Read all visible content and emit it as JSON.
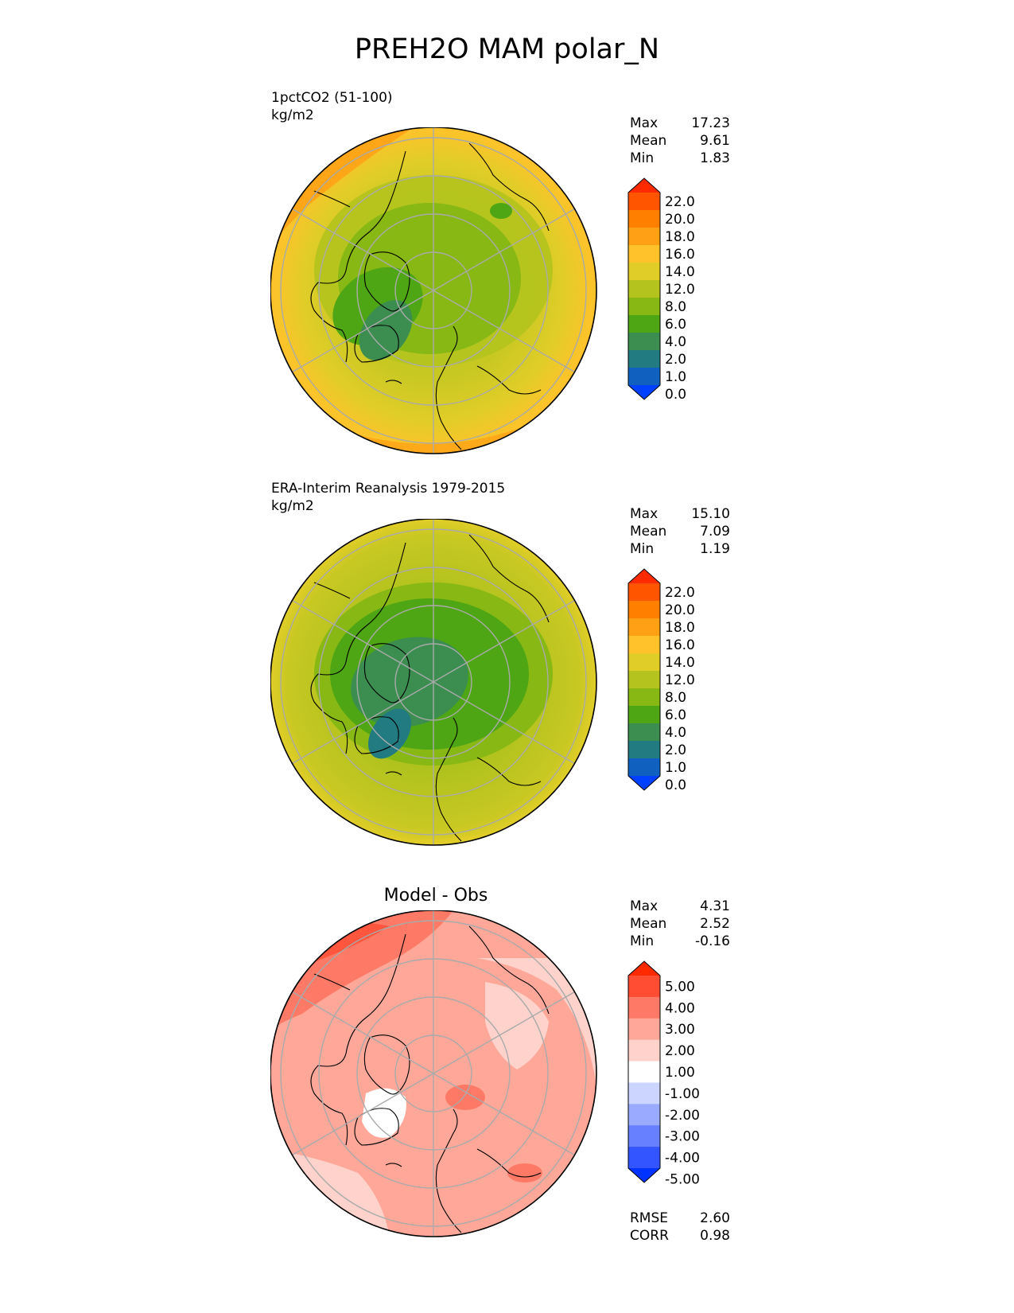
{
  "title": "PREH2O MAM polar_N",
  "panels": [
    {
      "name": "model",
      "subtitle_line1": "1pctCO2 (51-100)",
      "subtitle_line2": "kg/m2",
      "stats": [
        {
          "label": "Max",
          "value": "17.23"
        },
        {
          "label": "Mean",
          "value": "9.61"
        },
        {
          "label": "Min",
          "value": "1.83"
        }
      ],
      "colorbar": {
        "labels": [
          "22.0",
          "20.0",
          "18.0",
          "16.0",
          "14.0",
          "12.0",
          "8.0",
          "6.0",
          "4.0",
          "2.0",
          "1.0",
          "0.0"
        ],
        "colors": [
          "#ff2a00",
          "#ff5500",
          "#ff7f00",
          "#ffa015",
          "#ffc22a",
          "#e1cd28",
          "#b4c31e",
          "#87b814",
          "#4ea614",
          "#3b8e50",
          "#217b80",
          "#1060c0",
          "#0040ff"
        ]
      }
    },
    {
      "name": "obs",
      "subtitle_line1": "ERA-Interim Reanalysis 1979-2015",
      "subtitle_line2": "kg/m2",
      "stats": [
        {
          "label": "Max",
          "value": "15.10"
        },
        {
          "label": "Mean",
          "value": "7.09"
        },
        {
          "label": "Min",
          "value": "1.19"
        }
      ],
      "colorbar": {
        "labels": [
          "22.0",
          "20.0",
          "18.0",
          "16.0",
          "14.0",
          "12.0",
          "8.0",
          "6.0",
          "4.0",
          "2.0",
          "1.0",
          "0.0"
        ],
        "colors": [
          "#ff2a00",
          "#ff5500",
          "#ff7f00",
          "#ffa015",
          "#ffc22a",
          "#e1cd28",
          "#b4c31e",
          "#87b814",
          "#4ea614",
          "#3b8e50",
          "#217b80",
          "#1060c0",
          "#0040ff"
        ]
      }
    },
    {
      "name": "diff",
      "diff_title": "Model - Obs",
      "stats": [
        {
          "label": "Max",
          "value": "4.31"
        },
        {
          "label": "Mean",
          "value": "2.52"
        },
        {
          "label": "Min",
          "value": "-0.16"
        }
      ],
      "colorbar": {
        "labels": [
          "5.00",
          "4.00",
          "3.00",
          "2.00",
          "1.00",
          "-1.00",
          "-2.00",
          "-3.00",
          "-4.00",
          "-5.00"
        ],
        "colors": [
          "#ff2a00",
          "#ff4d33",
          "#ff7a66",
          "#ffa899",
          "#ffd3cc",
          "#ffffff",
          "#ccd5ff",
          "#99aaff",
          "#6680ff",
          "#3355ff",
          "#0033ff"
        ]
      },
      "metrics": [
        {
          "label": "RMSE",
          "value": "2.60"
        },
        {
          "label": "CORR",
          "value": "0.98"
        }
      ]
    }
  ]
}
